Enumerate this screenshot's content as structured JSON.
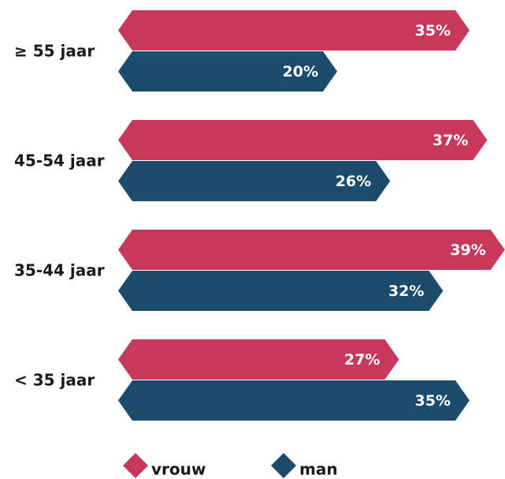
{
  "chart_data": {
    "type": "bar",
    "orientation": "horizontal",
    "categories": [
      "≥ 55 jaar",
      "45-54 jaar",
      "35-44 jaar",
      "< 35 jaar"
    ],
    "series": [
      {
        "name": "vrouw",
        "color": "#c8385a",
        "values": [
          35,
          37,
          39,
          27
        ],
        "value_labels": [
          "35%",
          "37%",
          "39%",
          "27%"
        ]
      },
      {
        "name": "man",
        "color": "#1b4b6d",
        "values": [
          20,
          26,
          32,
          35
        ],
        "value_labels": [
          "20%",
          "26%",
          "32%",
          "35%"
        ]
      }
    ],
    "legend": "bottom"
  }
}
